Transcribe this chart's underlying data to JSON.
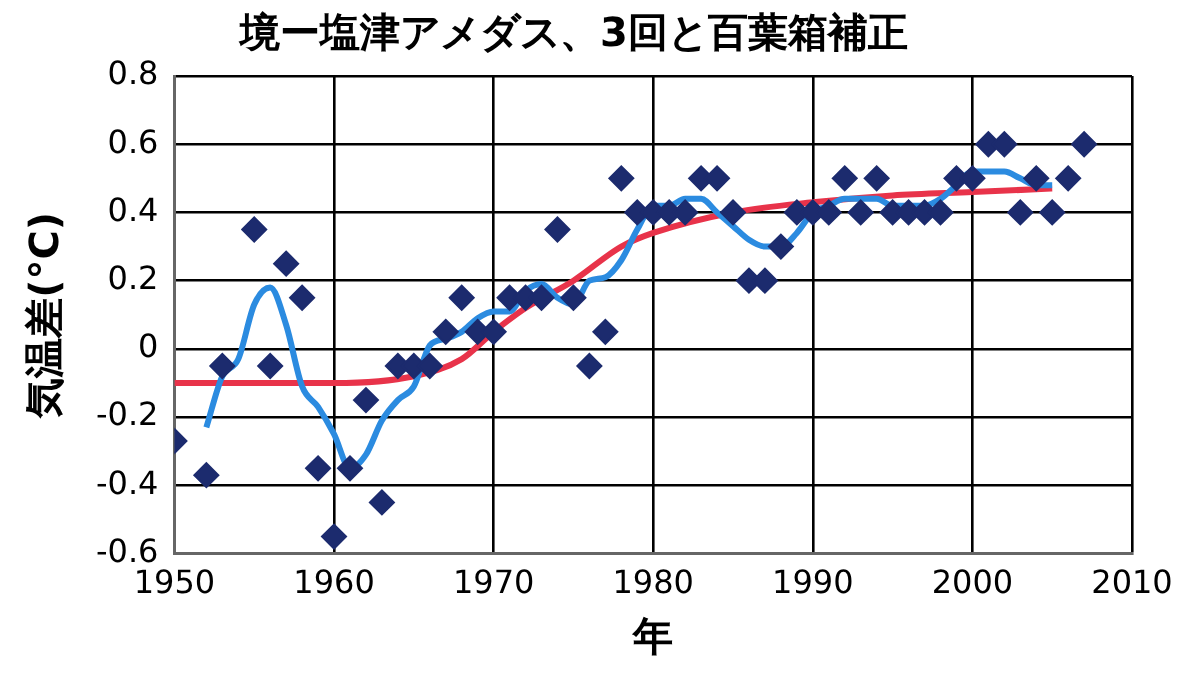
{
  "chart_data": {
    "type": "scatter",
    "title": "境ー塩津アメダス、3回と百葉箱補正",
    "xlabel": "年",
    "ylabel": "気温差(°C)",
    "xlim": [
      1950,
      2010
    ],
    "xticks": [
      1950,
      1960,
      1970,
      1980,
      1990,
      2000,
      2010
    ],
    "ylim": [
      -0.6,
      0.8
    ],
    "yticks": [
      -0.6,
      -0.4,
      -0.2,
      0,
      0.2,
      0.4,
      0.6,
      0.8
    ],
    "grid": true,
    "legend": false,
    "marker": "diamond",
    "series": [
      {
        "color": "#1c2b6e",
        "x": [
          1950,
          1951,
          1952,
          1953,
          1954,
          1955,
          1956,
          1957,
          1958,
          1959,
          1960,
          1961,
          1962,
          1963,
          1964,
          1965,
          1966,
          1967,
          1968,
          1969,
          1970,
          1971,
          1972,
          1973,
          1974,
          1975,
          1976,
          1977,
          1978,
          1979,
          1980,
          1981,
          1982,
          1983,
          1984,
          1985,
          1986,
          1987,
          1988,
          1989,
          1990,
          1991,
          1992,
          1993,
          1994,
          1995,
          1996,
          1997,
          1998,
          1999,
          2000,
          2001,
          2002,
          2003,
          2004,
          2005,
          2006,
          2007
        ],
        "values": [
          -0.27,
          null,
          -0.37,
          -0.05,
          null,
          0.35,
          -0.05,
          0.25,
          0.15,
          -0.35,
          -0.55,
          -0.35,
          -0.15,
          -0.45,
          -0.05,
          -0.05,
          -0.05,
          0.05,
          0.15,
          0.05,
          0.05,
          0.15,
          0.15,
          0.15,
          0.35,
          0.15,
          -0.05,
          0.05,
          0.5,
          0.4,
          0.4,
          0.4,
          0.4,
          0.5,
          0.5,
          0.4,
          0.2,
          0.2,
          0.3,
          0.4,
          0.4,
          0.4,
          0.5,
          0.4,
          0.5,
          0.4,
          0.4,
          0.4,
          0.4,
          0.5,
          0.5,
          0.6,
          0.6,
          0.4,
          0.5,
          0.4,
          0.5,
          0.6
        ]
      },
      {
        "type": "line",
        "color": "#2b8be0",
        "marker": "none",
        "x": [
          1952,
          1953,
          1954,
          1955,
          1956,
          1957,
          1958,
          1959,
          1960,
          1961,
          1962,
          1963,
          1964,
          1965,
          1966,
          1967,
          1968,
          1969,
          1970,
          1971,
          1972,
          1973,
          1974,
          1975,
          1976,
          1977,
          1978,
          1979,
          1980,
          1981,
          1982,
          1983,
          1984,
          1985,
          1986,
          1987,
          1988,
          1989,
          1990,
          1991,
          1992,
          1993,
          1994,
          1995,
          1996,
          1997,
          1998,
          1999,
          2000,
          2001,
          2002,
          2003,
          2004,
          2005
        ],
        "values": [
          -0.23,
          -0.08,
          -0.03,
          0.13,
          0.18,
          0.07,
          -0.11,
          -0.17,
          -0.25,
          -0.35,
          -0.31,
          -0.21,
          -0.15,
          -0.11,
          0.01,
          0.03,
          0.05,
          0.09,
          0.11,
          0.11,
          0.17,
          0.19,
          0.15,
          0.13,
          0.2,
          0.21,
          0.26,
          0.35,
          0.42,
          0.42,
          0.44,
          0.44,
          0.4,
          0.36,
          0.32,
          0.3,
          0.3,
          0.34,
          0.4,
          0.42,
          0.44,
          0.44,
          0.44,
          0.42,
          0.42,
          0.42,
          0.44,
          0.48,
          0.52,
          0.52,
          0.52,
          0.5,
          0.48,
          0.48
        ]
      },
      {
        "type": "line",
        "color": "#e8334a",
        "marker": "none",
        "x": [
          1950,
          1955,
          1960,
          1965,
          1968,
          1970,
          1972,
          1975,
          1978,
          1980,
          1985,
          1990,
          1995,
          2000,
          2005
        ],
        "values": [
          -0.1,
          -0.1,
          -0.1,
          -0.08,
          -0.03,
          0.05,
          0.12,
          0.2,
          0.3,
          0.34,
          0.4,
          0.43,
          0.45,
          0.46,
          0.47
        ]
      }
    ]
  }
}
